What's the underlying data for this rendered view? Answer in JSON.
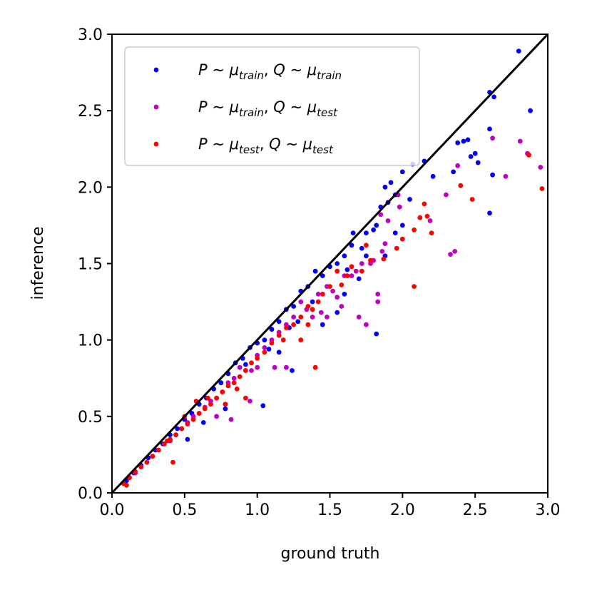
{
  "chart_data": {
    "type": "scatter",
    "title": "",
    "xlabel": "ground truth",
    "ylabel": "inference",
    "xlim": [
      0.0,
      3.0
    ],
    "ylim": [
      0.0,
      3.0
    ],
    "xticks": [
      "0.0",
      "0.5",
      "1.0",
      "1.5",
      "2.0",
      "2.5",
      "3.0"
    ],
    "yticks": [
      "0.0",
      "0.5",
      "1.0",
      "1.5",
      "2.0",
      "2.5",
      "3.0"
    ],
    "grid": false,
    "legend_position": "top-left",
    "reference_line": {
      "from": [
        0.0,
        0.0
      ],
      "to": [
        3.0,
        3.0
      ],
      "color": "#000000"
    },
    "series": [
      {
        "name": "P ~ μtrain, Q ~ μtrain",
        "legend": {
          "a": "P",
          "a_sub": "",
          "b": "Q",
          "b_sub": "train",
          "mu1_sub": "train"
        },
        "color": "#0000ff",
        "points": [
          [
            2.8,
            2.89
          ],
          [
            2.6,
            2.62
          ],
          [
            2.63,
            2.59
          ],
          [
            2.88,
            2.5
          ],
          [
            2.6,
            2.38
          ],
          [
            2.45,
            2.31
          ],
          [
            2.42,
            2.3
          ],
          [
            2.38,
            2.29
          ],
          [
            2.5,
            2.22
          ],
          [
            2.52,
            2.16
          ],
          [
            2.47,
            2.2
          ],
          [
            2.15,
            2.17
          ],
          [
            2.07,
            2.15
          ],
          [
            2.0,
            2.1
          ],
          [
            2.62,
            2.08
          ],
          [
            2.6,
            1.83
          ],
          [
            2.35,
            2.1
          ],
          [
            2.21,
            2.07
          ],
          [
            1.92,
            2.03
          ],
          [
            1.88,
            2.0
          ],
          [
            1.95,
            1.95
          ],
          [
            1.85,
            1.87
          ],
          [
            1.9,
            1.9
          ],
          [
            1.82,
            1.75
          ],
          [
            1.8,
            1.72
          ],
          [
            1.75,
            1.7
          ],
          [
            1.66,
            1.7
          ],
          [
            1.72,
            1.6
          ],
          [
            1.65,
            1.62
          ],
          [
            1.6,
            1.55
          ],
          [
            1.55,
            1.5
          ],
          [
            1.5,
            1.48
          ],
          [
            1.45,
            1.42
          ],
          [
            1.4,
            1.45
          ],
          [
            1.35,
            1.35
          ],
          [
            1.3,
            1.32
          ],
          [
            1.25,
            1.22
          ],
          [
            1.2,
            1.2
          ],
          [
            1.15,
            1.12
          ],
          [
            1.1,
            1.07
          ],
          [
            1.05,
            1.0
          ],
          [
            1.0,
            0.98
          ],
          [
            0.95,
            0.95
          ],
          [
            0.9,
            0.88
          ],
          [
            0.85,
            0.85
          ],
          [
            0.8,
            0.78
          ],
          [
            0.75,
            0.72
          ],
          [
            0.7,
            0.68
          ],
          [
            0.65,
            0.62
          ],
          [
            0.6,
            0.58
          ],
          [
            0.55,
            0.52
          ],
          [
            0.5,
            0.48
          ],
          [
            0.45,
            0.42
          ],
          [
            0.4,
            0.38
          ],
          [
            0.35,
            0.32
          ],
          [
            0.3,
            0.28
          ],
          [
            0.25,
            0.23
          ],
          [
            0.2,
            0.18
          ],
          [
            0.15,
            0.13
          ],
          [
            0.1,
            0.08
          ],
          [
            1.82,
            1.04
          ],
          [
            1.04,
            0.57
          ],
          [
            1.24,
            0.8
          ],
          [
            1.6,
            1.3
          ],
          [
            1.7,
            1.4
          ],
          [
            1.88,
            1.55
          ],
          [
            2.0,
            1.75
          ],
          [
            1.55,
            1.18
          ],
          [
            1.45,
            1.1
          ],
          [
            1.38,
            1.25
          ],
          [
            1.28,
            1.12
          ],
          [
            0.78,
            0.55
          ],
          [
            0.63,
            0.46
          ],
          [
            0.52,
            0.35
          ],
          [
            1.15,
            0.92
          ],
          [
            1.08,
            0.94
          ],
          [
            0.92,
            0.84
          ],
          [
            1.22,
            1.08
          ],
          [
            1.62,
            1.46
          ],
          [
            1.75,
            1.55
          ],
          [
            1.95,
            1.7
          ],
          [
            2.05,
            1.92
          ]
        ]
      },
      {
        "name": "P ~ μtrain, Q ~ μtest",
        "legend": {
          "a": "P",
          "a_sub": "",
          "b": "Q",
          "b_sub": "test",
          "mu1_sub": "train"
        },
        "color": "#c000c0",
        "points": [
          [
            2.62,
            2.32
          ],
          [
            2.81,
            2.3
          ],
          [
            2.86,
            2.22
          ],
          [
            2.95,
            2.13
          ],
          [
            2.71,
            2.07
          ],
          [
            2.38,
            2.14
          ],
          [
            2.33,
            1.56
          ],
          [
            2.36,
            1.58
          ],
          [
            2.3,
            1.95
          ],
          [
            2.19,
            1.78
          ],
          [
            1.97,
            1.95
          ],
          [
            1.98,
            1.87
          ],
          [
            1.9,
            1.78
          ],
          [
            1.85,
            1.82
          ],
          [
            1.8,
            1.52
          ],
          [
            1.83,
            1.3
          ],
          [
            1.83,
            1.25
          ],
          [
            1.86,
            1.58
          ],
          [
            1.88,
            1.63
          ],
          [
            1.78,
            1.5
          ],
          [
            1.72,
            1.5
          ],
          [
            1.68,
            1.45
          ],
          [
            1.65,
            1.42
          ],
          [
            1.6,
            1.42
          ],
          [
            1.58,
            1.22
          ],
          [
            1.55,
            1.28
          ],
          [
            1.52,
            1.32
          ],
          [
            1.48,
            1.35
          ],
          [
            1.42,
            1.3
          ],
          [
            1.38,
            1.15
          ],
          [
            1.34,
            1.2
          ],
          [
            1.3,
            1.25
          ],
          [
            1.25,
            1.15
          ],
          [
            1.2,
            1.1
          ],
          [
            1.15,
            1.05
          ],
          [
            1.1,
            1.0
          ],
          [
            1.05,
            0.95
          ],
          [
            1.0,
            0.9
          ],
          [
            0.96,
            0.8
          ],
          [
            0.92,
            0.8
          ],
          [
            0.88,
            0.82
          ],
          [
            0.84,
            0.75
          ],
          [
            0.8,
            0.72
          ],
          [
            0.76,
            0.66
          ],
          [
            0.72,
            0.62
          ],
          [
            0.68,
            0.6
          ],
          [
            0.64,
            0.56
          ],
          [
            0.6,
            0.52
          ],
          [
            0.56,
            0.5
          ],
          [
            0.52,
            0.46
          ],
          [
            0.48,
            0.42
          ],
          [
            0.44,
            0.38
          ],
          [
            0.4,
            0.34
          ],
          [
            0.36,
            0.32
          ],
          [
            0.32,
            0.28
          ],
          [
            0.28,
            0.24
          ],
          [
            0.24,
            0.2
          ],
          [
            0.2,
            0.17
          ],
          [
            0.16,
            0.13
          ],
          [
            0.12,
            0.1
          ],
          [
            1.75,
            1.1
          ],
          [
            1.7,
            1.15
          ],
          [
            0.82,
            0.48
          ],
          [
            0.72,
            0.5
          ],
          [
            0.95,
            0.6
          ],
          [
            1.12,
            0.82
          ],
          [
            1.2,
            0.82
          ],
          [
            1.0,
            0.82
          ],
          [
            1.44,
            1.18
          ],
          [
            1.48,
            1.15
          ]
        ]
      },
      {
        "name": "P ~ μtest, Q ~ μtest",
        "legend": {
          "a": "P",
          "a_sub": "",
          "b": "Q",
          "b_sub": "test",
          "mu1_sub": "test"
        },
        "color": "#ff0000",
        "points": [
          [
            2.96,
            1.99
          ],
          [
            2.87,
            2.21
          ],
          [
            2.4,
            2.01
          ],
          [
            2.48,
            1.92
          ],
          [
            2.15,
            1.89
          ],
          [
            2.17,
            1.81
          ],
          [
            2.12,
            1.8
          ],
          [
            2.2,
            1.7
          ],
          [
            2.08,
            1.72
          ],
          [
            2.0,
            1.66
          ],
          [
            1.75,
            1.62
          ],
          [
            1.78,
            1.52
          ],
          [
            1.72,
            1.45
          ],
          [
            1.62,
            1.42
          ],
          [
            1.58,
            1.36
          ],
          [
            1.5,
            1.35
          ],
          [
            1.45,
            1.3
          ],
          [
            1.42,
            1.25
          ],
          [
            1.38,
            1.2
          ],
          [
            1.35,
            1.22
          ],
          [
            1.3,
            1.15
          ],
          [
            1.25,
            1.1
          ],
          [
            1.2,
            1.08
          ],
          [
            1.15,
            1.03
          ],
          [
            1.1,
            0.98
          ],
          [
            1.05,
            0.92
          ],
          [
            1.0,
            0.88
          ],
          [
            0.96,
            0.85
          ],
          [
            0.92,
            0.8
          ],
          [
            0.88,
            0.76
          ],
          [
            0.84,
            0.72
          ],
          [
            0.8,
            0.7
          ],
          [
            0.76,
            0.66
          ],
          [
            0.72,
            0.62
          ],
          [
            0.68,
            0.58
          ],
          [
            0.64,
            0.55
          ],
          [
            0.6,
            0.52
          ],
          [
            0.56,
            0.48
          ],
          [
            0.52,
            0.45
          ],
          [
            0.48,
            0.42
          ],
          [
            0.44,
            0.38
          ],
          [
            0.4,
            0.35
          ],
          [
            0.36,
            0.32
          ],
          [
            0.32,
            0.28
          ],
          [
            0.28,
            0.24
          ],
          [
            0.24,
            0.2
          ],
          [
            0.2,
            0.17
          ],
          [
            0.16,
            0.14
          ],
          [
            0.12,
            0.1
          ],
          [
            0.08,
            0.06
          ],
          [
            0.1,
            0.05
          ],
          [
            0.42,
            0.2
          ],
          [
            0.92,
            0.62
          ],
          [
            1.4,
            0.82
          ],
          [
            2.08,
            1.35
          ],
          [
            1.96,
            1.6
          ],
          [
            1.87,
            1.53
          ],
          [
            1.65,
            1.48
          ],
          [
            1.55,
            1.45
          ],
          [
            1.35,
            1.1
          ],
          [
            1.3,
            1.0
          ],
          [
            1.18,
            1.0
          ],
          [
            0.78,
            0.58
          ],
          [
            0.86,
            0.68
          ],
          [
            0.66,
            0.62
          ],
          [
            0.58,
            0.6
          ],
          [
            0.5,
            0.5
          ],
          [
            0.38,
            0.34
          ]
        ]
      }
    ]
  }
}
